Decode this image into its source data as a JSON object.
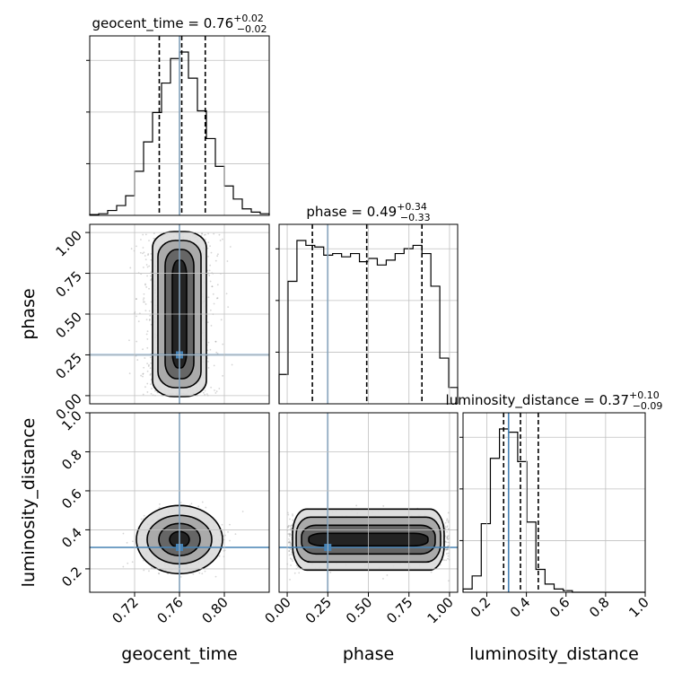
{
  "colors": {
    "truth": "#4682b4",
    "grid": "#c0c0c0",
    "hist": "#000000",
    "background": "#ffffff"
  },
  "chart_data": {
    "type": "corner",
    "parameters": [
      "geocent_time",
      "phase",
      "luminosity_distance"
    ],
    "truths": {
      "geocent_time": 0.76,
      "phase": 0.25,
      "luminosity_distance": 0.31
    },
    "titles": [
      {
        "param": "geocent_time",
        "label": "geocent_time = 0.76",
        "plus": "+0.02",
        "minus": "−0.02"
      },
      {
        "param": "phase",
        "label": "phase = 0.49",
        "plus": "+0.34",
        "minus": "−0.33"
      },
      {
        "param": "luminosity_distance",
        "label": "luminosity_distance = 0.37",
        "plus": "+0.10",
        "minus": "−0.09"
      }
    ],
    "axis_labels": {
      "x": [
        "geocent_time",
        "phase",
        "luminosity_distance"
      ],
      "y": [
        "phase",
        "luminosity_distance"
      ]
    },
    "ticks": {
      "geocent_time": [
        "0.72",
        "0.76",
        "0.80"
      ],
      "phase": [
        "0.00",
        "0.25",
        "0.50",
        "0.75",
        "1.00"
      ],
      "luminosity_distance_x": [
        "0.2",
        "0.4",
        "0.6",
        "0.8",
        "1.0"
      ],
      "luminosity_distance_y": [
        "0.2",
        "0.4",
        "0.6",
        "0.8",
        "1.0"
      ]
    },
    "ranges": {
      "geocent_time": [
        0.68,
        0.84
      ],
      "phase": [
        -0.05,
        1.05
      ],
      "luminosity_distance": [
        0.08,
        1.0
      ]
    },
    "quantiles": {
      "geocent_time": [
        0.742,
        0.762,
        0.783
      ],
      "phase": [
        0.155,
        0.49,
        0.83
      ],
      "luminosity_distance": [
        0.285,
        0.37,
        0.46
      ]
    },
    "histograms": {
      "geocent_time": {
        "edges_start": 0.68,
        "bin_width": 0.008,
        "counts": [
          0.5,
          1,
          3,
          6,
          12,
          27,
          45,
          63,
          81,
          96,
          100,
          84,
          64,
          47,
          30,
          18,
          10,
          4,
          2,
          1
        ]
      },
      "phase": {
        "edges_start": -0.05,
        "bin_width": 0.055,
        "counts": [
          18,
          75,
          100,
          97,
          96,
          91,
          92,
          90,
          92,
          87,
          89,
          85,
          88,
          92,
          95,
          97,
          92,
          72,
          28,
          10
        ]
      },
      "luminosity_distance": {
        "edges_start": 0.08,
        "bin_width": 0.046,
        "counts": [
          2,
          10,
          42,
          82,
          100,
          98,
          80,
          43,
          14,
          5,
          2,
          1,
          0,
          0,
          0,
          0,
          0,
          0,
          0,
          0
        ]
      }
    },
    "scatter_2d": [
      {
        "x": "geocent_time",
        "y": "phase",
        "x_center": 0.76,
        "x_sigma": 0.012,
        "y_min": 0.0,
        "y_max": 1.0
      },
      {
        "x": "geocent_time",
        "y": "luminosity_distance",
        "x_center": 0.76,
        "x_sigma": 0.012,
        "y_center": 0.35,
        "y_sigma": 0.055
      },
      {
        "x": "phase",
        "y": "luminosity_distance",
        "x_min": 0.0,
        "x_max": 1.0,
        "y_center": 0.35,
        "y_sigma": 0.05
      }
    ]
  }
}
